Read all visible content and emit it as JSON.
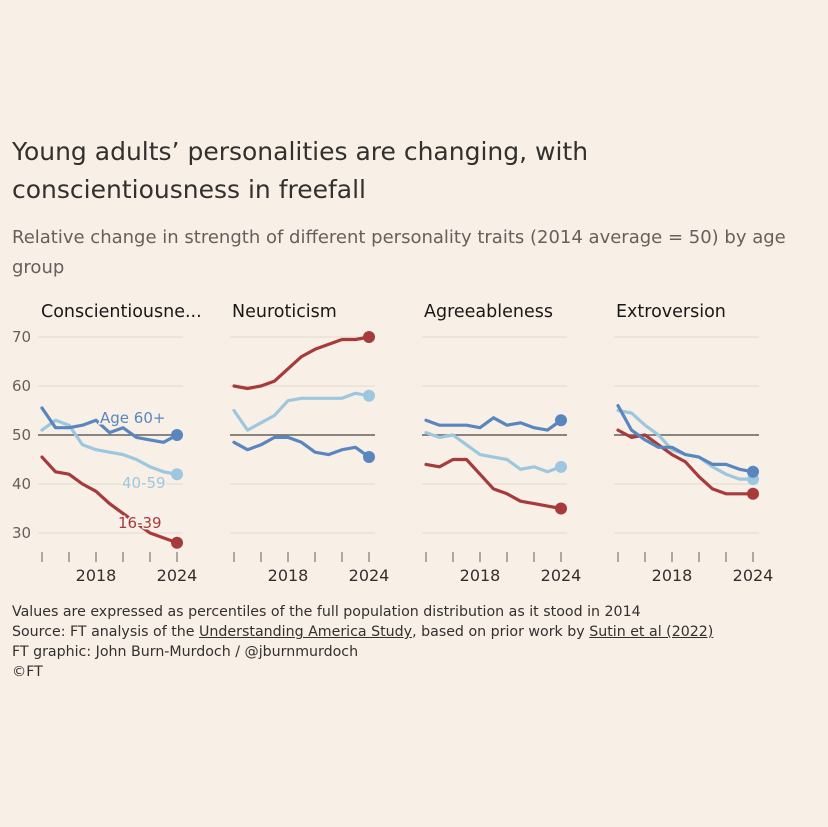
{
  "title": "Young adults’ personalities are changing, with conscientiousness in freefall",
  "subtitle": "Relative change in strength of different personality traits (2014 average = 50) by age group",
  "colors": {
    "age_16_39": "#a63b3b",
    "age_40_59": "#9dc7df",
    "age_60_plus": "#5a86c0",
    "baseline": "#66605c",
    "grid": "#e2d8cd",
    "background": "#f8efe6"
  },
  "chart_data": {
    "type": "line",
    "x": [
      2014,
      2015,
      2016,
      2017,
      2018,
      2019,
      2020,
      2021,
      2022,
      2023,
      2024
    ],
    "x_tick_labels": [
      "2018",
      "2024"
    ],
    "y_ticks": [
      30,
      40,
      50,
      60,
      70
    ],
    "ylim": [
      28,
      71
    ],
    "baseline": 50,
    "series_labels": [
      "Age 60+",
      "40-59",
      "16-39"
    ],
    "panels": [
      {
        "title": "Conscientiousne...",
        "series": [
          {
            "name": "16-39",
            "values": [
              45.5,
              42.5,
              42,
              40,
              38.5,
              36,
              34,
              32,
              30,
              29,
              28
            ]
          },
          {
            "name": "40-59",
            "values": [
              51,
              53,
              52,
              48,
              47,
              46.5,
              46,
              45,
              43.5,
              42.5,
              42
            ]
          },
          {
            "name": "Age 60+",
            "values": [
              55.5,
              51.5,
              51.5,
              52,
              53,
              50.5,
              51.5,
              49.5,
              49,
              48.5,
              50
            ]
          }
        ]
      },
      {
        "title": "Neuroticism",
        "series": [
          {
            "name": "16-39",
            "values": [
              60,
              59.5,
              60,
              61,
              63.5,
              66,
              67.5,
              68.5,
              69.5,
              69.5,
              70
            ]
          },
          {
            "name": "40-59",
            "values": [
              55,
              51,
              52.5,
              54,
              57,
              57.5,
              57.5,
              57.5,
              57.5,
              58.5,
              58
            ]
          },
          {
            "name": "Age 60+",
            "values": [
              48.5,
              47,
              48,
              49.5,
              49.5,
              48.5,
              46.5,
              46,
              47,
              47.5,
              45.5
            ]
          }
        ]
      },
      {
        "title": "Agreeableness",
        "series": [
          {
            "name": "16-39",
            "values": [
              44,
              43.5,
              45,
              45,
              42,
              39,
              38,
              36.5,
              36,
              35.5,
              35
            ]
          },
          {
            "name": "40-59",
            "values": [
              50.5,
              49.5,
              50,
              48,
              46,
              45.5,
              45,
              43,
              43.5,
              42.5,
              43.5
            ]
          },
          {
            "name": "Age 60+",
            "values": [
              53,
              52,
              52,
              52,
              51.5,
              53.5,
              52,
              52.5,
              51.5,
              51,
              53
            ]
          }
        ]
      },
      {
        "title": "Extroversion",
        "series": [
          {
            "name": "16-39",
            "values": [
              51,
              49.5,
              50,
              48,
              46,
              44.5,
              41.5,
              39,
              38,
              38,
              38
            ]
          },
          {
            "name": "40-59",
            "values": [
              55,
              54.5,
              52,
              50,
              47,
              46,
              45.5,
              43.5,
              42,
              41,
              41
            ]
          },
          {
            "name": "Age 60+",
            "values": [
              56,
              51,
              49,
              47.5,
              47.5,
              46,
              45.5,
              44,
              44,
              43,
              42.5
            ]
          }
        ]
      }
    ]
  },
  "footer": {
    "note": "Values are expressed as percentiles of the full population distribution as it stood in 2014",
    "source_prefix": "Source: FT analysis of the ",
    "source_link1": "Understanding America Study",
    "source_middle": ", based on prior work by ",
    "source_link2": "Sutin et al (2022)",
    "graphic": "FT graphic: John Burn-Murdoch / @jburnmurdoch",
    "copyright": "©FT"
  }
}
